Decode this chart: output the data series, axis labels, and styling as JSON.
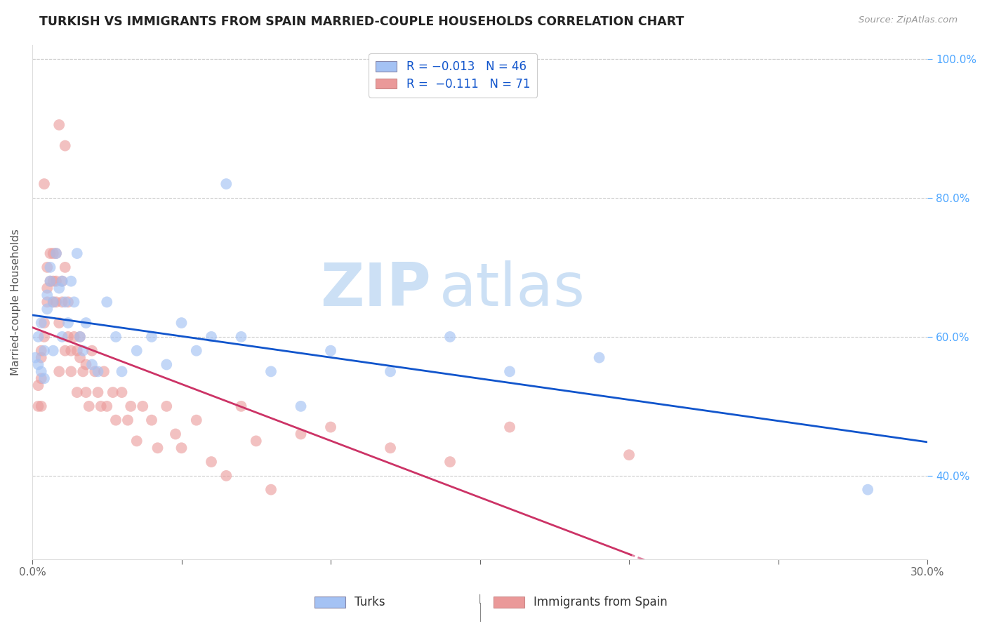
{
  "title": "TURKISH VS IMMIGRANTS FROM SPAIN MARRIED-COUPLE HOUSEHOLDS CORRELATION CHART",
  "source": "Source: ZipAtlas.com",
  "ylabel": "Married-couple Households",
  "xlabel_turks": "Turks",
  "xlabel_spain": "Immigrants from Spain",
  "x_min": 0.0,
  "x_max": 0.3,
  "y_min": 0.28,
  "y_max": 1.02,
  "y_ticks": [
    0.4,
    0.6,
    0.8,
    1.0
  ],
  "turks_color": "#a4c2f4",
  "spain_color": "#ea9999",
  "turks_line_color": "#1155cc",
  "spain_line_color": "#cc3366",
  "watermark_zip_color": "#cce0f5",
  "watermark_atlas_color": "#cce0f5"
}
